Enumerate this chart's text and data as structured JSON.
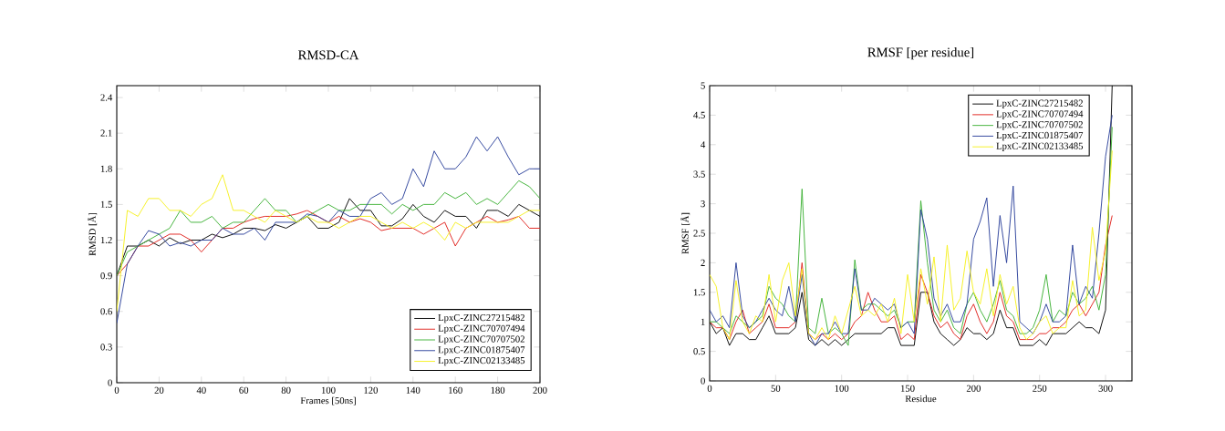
{
  "chart_data": [
    {
      "type": "line",
      "title": "RMSD-CA",
      "xlabel": "Frames [50ns]",
      "ylabel": "RMSD [Å]",
      "xlim": [
        0,
        200
      ],
      "ylim": [
        0,
        2.5
      ],
      "xticks": [
        0,
        20,
        40,
        60,
        80,
        100,
        120,
        140,
        160,
        180,
        200
      ],
      "yticks": [
        0,
        0.3,
        0.6,
        0.9,
        1.2,
        1.5,
        1.8,
        2.1,
        2.4
      ],
      "legend": "bottom right",
      "x": [
        0,
        5,
        10,
        15,
        20,
        25,
        30,
        35,
        40,
        45,
        50,
        55,
        60,
        65,
        70,
        75,
        80,
        85,
        90,
        95,
        100,
        105,
        110,
        115,
        120,
        125,
        130,
        135,
        140,
        145,
        150,
        155,
        160,
        165,
        170,
        175,
        180,
        185,
        190,
        195,
        200
      ],
      "series": [
        {
          "name": "LpxC-ZINC27215482",
          "color": "#000000",
          "values": [
            0.9,
            1.15,
            1.15,
            1.2,
            1.15,
            1.22,
            1.17,
            1.2,
            1.2,
            1.25,
            1.22,
            1.25,
            1.3,
            1.3,
            1.28,
            1.33,
            1.3,
            1.35,
            1.4,
            1.3,
            1.3,
            1.35,
            1.55,
            1.45,
            1.45,
            1.32,
            1.32,
            1.38,
            1.5,
            1.4,
            1.35,
            1.45,
            1.4,
            1.4,
            1.3,
            1.45,
            1.45,
            1.4,
            1.5,
            1.45,
            1.4
          ]
        },
        {
          "name": "LpxC-ZINC70707494",
          "color": "#e0201b",
          "values": [
            0.9,
            1.0,
            1.15,
            1.15,
            1.2,
            1.25,
            1.25,
            1.2,
            1.1,
            1.2,
            1.3,
            1.3,
            1.35,
            1.38,
            1.4,
            1.4,
            1.4,
            1.42,
            1.45,
            1.4,
            1.35,
            1.4,
            1.35,
            1.38,
            1.35,
            1.28,
            1.3,
            1.3,
            1.3,
            1.25,
            1.3,
            1.35,
            1.15,
            1.3,
            1.35,
            1.4,
            1.35,
            1.37,
            1.4,
            1.3,
            1.3
          ]
        },
        {
          "name": "LpxC-ZINC70707502",
          "color": "#3cb034",
          "values": [
            0.9,
            1.1,
            1.15,
            1.2,
            1.25,
            1.3,
            1.45,
            1.35,
            1.35,
            1.4,
            1.3,
            1.35,
            1.35,
            1.45,
            1.55,
            1.45,
            1.45,
            1.35,
            1.4,
            1.45,
            1.5,
            1.45,
            1.45,
            1.5,
            1.5,
            1.5,
            1.42,
            1.5,
            1.45,
            1.5,
            1.5,
            1.6,
            1.55,
            1.6,
            1.5,
            1.55,
            1.5,
            1.6,
            1.7,
            1.65,
            1.55
          ]
        },
        {
          "name": "LpxC-ZINC01875407",
          "color": "#2a3f9a",
          "values": [
            0.5,
            1.0,
            1.15,
            1.28,
            1.25,
            1.15,
            1.18,
            1.15,
            1.2,
            1.2,
            1.3,
            1.25,
            1.25,
            1.3,
            1.2,
            1.35,
            1.35,
            1.35,
            1.42,
            1.4,
            1.35,
            1.45,
            1.4,
            1.4,
            1.55,
            1.6,
            1.5,
            1.55,
            1.8,
            1.65,
            1.95,
            1.8,
            1.8,
            1.9,
            2.07,
            1.95,
            2.07,
            1.9,
            1.75,
            1.8,
            1.8
          ]
        },
        {
          "name": "LpxC-ZINC02133485",
          "color": "#f5f01e",
          "values": [
            0.6,
            1.45,
            1.4,
            1.55,
            1.55,
            1.45,
            1.45,
            1.4,
            1.5,
            1.55,
            1.75,
            1.45,
            1.45,
            1.4,
            1.35,
            1.45,
            1.4,
            1.35,
            1.4,
            1.35,
            1.35,
            1.3,
            1.35,
            1.4,
            1.4,
            1.35,
            1.3,
            1.35,
            1.3,
            1.35,
            1.3,
            1.2,
            1.35,
            1.3,
            1.35,
            1.35,
            1.35,
            1.35,
            1.4,
            1.45,
            1.45
          ]
        }
      ]
    },
    {
      "type": "line",
      "title": "RMSF [per residue]",
      "xlabel": "Residue",
      "ylabel": "RMSF [Å]",
      "xlim": [
        0,
        320
      ],
      "ylim": [
        0,
        5
      ],
      "xticks": [
        0,
        50,
        100,
        150,
        200,
        250,
        300
      ],
      "yticks": [
        0,
        0.5,
        1,
        1.5,
        2,
        2.5,
        3,
        3.5,
        4,
        4.5,
        5
      ],
      "legend": "top right",
      "x": [
        0,
        5,
        10,
        15,
        20,
        25,
        30,
        35,
        40,
        45,
        50,
        55,
        60,
        65,
        70,
        75,
        80,
        85,
        90,
        95,
        100,
        105,
        110,
        115,
        120,
        125,
        130,
        135,
        140,
        145,
        150,
        155,
        160,
        165,
        170,
        175,
        180,
        185,
        190,
        195,
        200,
        205,
        210,
        215,
        220,
        225,
        230,
        235,
        240,
        245,
        250,
        255,
        260,
        265,
        270,
        275,
        280,
        285,
        290,
        295,
        300,
        305
      ],
      "series": [
        {
          "name": "LpxC-ZINC27215482",
          "color": "#000000",
          "values": [
            1.0,
            0.8,
            0.9,
            0.6,
            0.8,
            0.8,
            0.7,
            0.7,
            0.9,
            1.1,
            0.8,
            0.8,
            0.8,
            0.9,
            1.5,
            0.7,
            0.6,
            0.7,
            0.6,
            0.7,
            0.6,
            0.7,
            0.8,
            0.8,
            0.8,
            0.8,
            0.8,
            0.9,
            0.9,
            0.6,
            0.6,
            0.6,
            1.5,
            1.5,
            1.0,
            0.8,
            0.7,
            0.6,
            0.7,
            0.9,
            0.8,
            0.8,
            0.7,
            0.8,
            1.2,
            0.9,
            0.9,
            0.6,
            0.6,
            0.6,
            0.7,
            0.6,
            0.8,
            0.8,
            0.8,
            0.9,
            1.0,
            0.9,
            0.9,
            0.8,
            1.2,
            5.0
          ]
        },
        {
          "name": "LpxC-ZINC70707494",
          "color": "#e0201b",
          "values": [
            1.0,
            0.9,
            0.9,
            0.7,
            1.0,
            1.2,
            0.8,
            0.9,
            1.0,
            1.3,
            0.9,
            0.9,
            0.9,
            1.0,
            2.0,
            0.8,
            0.7,
            0.8,
            0.7,
            0.8,
            0.7,
            0.8,
            1.0,
            1.1,
            1.5,
            1.2,
            1.0,
            1.0,
            1.1,
            0.7,
            0.8,
            0.7,
            1.8,
            1.5,
            1.1,
            0.9,
            1.0,
            0.8,
            0.7,
            1.1,
            1.3,
            1.0,
            0.8,
            1.0,
            1.5,
            1.1,
            1.0,
            0.7,
            0.7,
            0.7,
            0.8,
            0.8,
            0.9,
            0.9,
            1.0,
            1.2,
            1.3,
            1.1,
            1.3,
            1.5,
            2.3,
            2.8
          ]
        },
        {
          "name": "LpxC-ZINC70707502",
          "color": "#3cb034",
          "values": [
            1.0,
            1.0,
            0.9,
            0.8,
            1.1,
            1.0,
            0.9,
            1.0,
            1.1,
            1.6,
            1.4,
            1.3,
            1.1,
            1.0,
            3.25,
            0.9,
            0.8,
            1.4,
            0.8,
            0.9,
            0.8,
            0.6,
            2.05,
            1.2,
            1.3,
            1.3,
            1.2,
            1.1,
            1.2,
            0.9,
            1.0,
            1.0,
            3.05,
            2.0,
            1.2,
            1.0,
            1.2,
            0.9,
            0.8,
            1.3,
            1.5,
            1.2,
            1.0,
            1.3,
            1.7,
            1.2,
            1.1,
            0.8,
            0.8,
            0.9,
            1.2,
            1.8,
            1.0,
            1.2,
            1.1,
            1.5,
            1.3,
            1.4,
            1.6,
            1.2,
            1.8,
            4.3
          ]
        },
        {
          "name": "LpxC-ZINC01875407",
          "color": "#2a3f9a",
          "values": [
            1.2,
            1.0,
            1.1,
            0.9,
            2.0,
            1.1,
            0.9,
            1.0,
            1.2,
            1.4,
            1.2,
            1.1,
            1.6,
            1.0,
            1.8,
            0.8,
            0.6,
            0.8,
            0.8,
            1.0,
            0.8,
            0.8,
            1.9,
            1.2,
            1.2,
            1.4,
            1.3,
            1.2,
            1.3,
            0.9,
            1.0,
            0.8,
            2.9,
            2.4,
            1.4,
            1.1,
            1.3,
            1.0,
            1.0,
            1.3,
            2.4,
            2.7,
            3.1,
            1.6,
            2.8,
            2.0,
            3.3,
            1.0,
            0.9,
            0.8,
            1.0,
            1.3,
            1.0,
            1.0,
            1.1,
            2.3,
            1.3,
            1.6,
            1.4,
            2.5,
            3.8,
            4.5
          ]
        },
        {
          "name": "LpxC-ZINC02133485",
          "color": "#f5f01e",
          "values": [
            1.8,
            1.6,
            0.9,
            0.7,
            1.7,
            1.0,
            0.8,
            1.1,
            1.0,
            1.8,
            1.0,
            1.7,
            2.0,
            1.1,
            1.9,
            0.8,
            0.7,
            0.9,
            0.7,
            1.1,
            0.8,
            1.2,
            1.6,
            1.1,
            1.2,
            1.1,
            1.3,
            1.0,
            1.4,
            0.8,
            1.8,
            1.0,
            1.9,
            1.3,
            2.1,
            1.0,
            2.3,
            1.2,
            1.4,
            2.2,
            1.5,
            1.3,
            1.9,
            1.1,
            1.8,
            1.3,
            1.6,
            0.9,
            0.7,
            0.8,
            1.0,
            1.1,
            0.8,
            0.9,
            0.9,
            1.7,
            1.1,
            1.2,
            2.6,
            1.7,
            2.2,
            3.9
          ]
        }
      ]
    }
  ]
}
